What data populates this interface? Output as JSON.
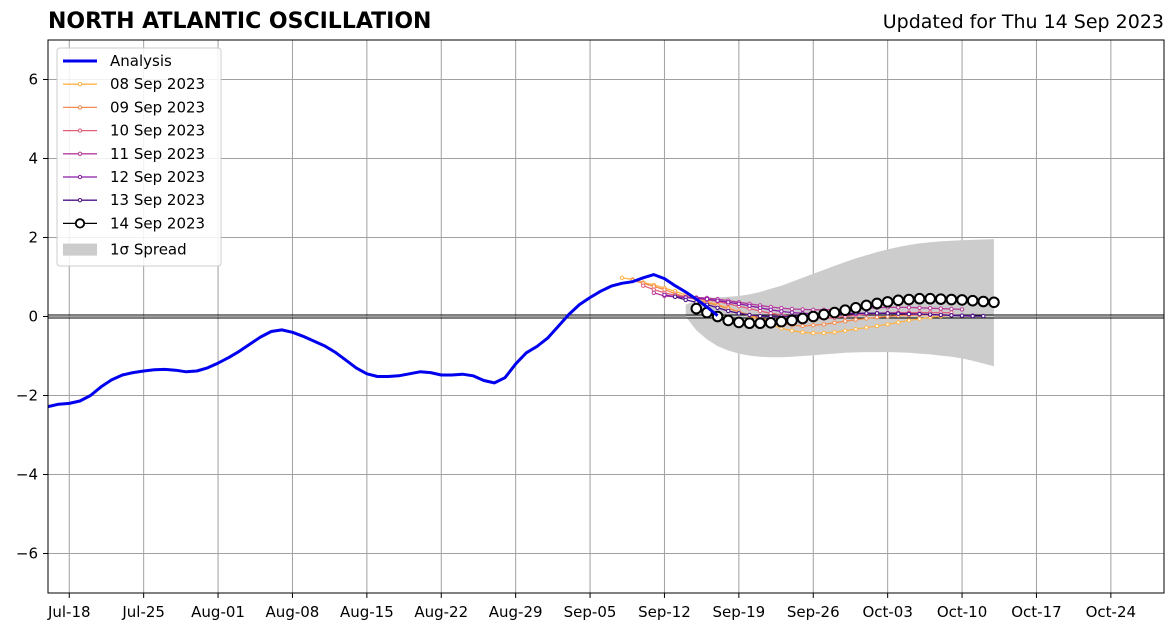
{
  "chart_data": {
    "type": "line",
    "title": "NORTH ATLANTIC OSCILLATION",
    "subtitle": "Updated for Thu 14 Sep 2023",
    "xlabel": "",
    "ylabel": "",
    "ylim": [
      -7,
      7
    ],
    "xlim": [
      "2023-07-16",
      "2023-10-29"
    ],
    "y_ticks": [
      -6,
      -4,
      -2,
      0,
      2,
      4,
      6
    ],
    "x_tick_dates": [
      "2023-07-18",
      "2023-07-25",
      "2023-08-01",
      "2023-08-08",
      "2023-08-15",
      "2023-08-22",
      "2023-08-29",
      "2023-09-05",
      "2023-09-12",
      "2023-09-19",
      "2023-09-26",
      "2023-10-03",
      "2023-10-10",
      "2023-10-17",
      "2023-10-24"
    ],
    "x_tick_labels": [
      "Jul-18",
      "Jul-25",
      "Aug-01",
      "Aug-08",
      "Aug-15",
      "Aug-22",
      "Aug-29",
      "Sep-05",
      "Sep-12",
      "Sep-19",
      "Sep-26",
      "Oct-03",
      "Oct-10",
      "Oct-17",
      "Oct-24"
    ],
    "grid": true,
    "legend_position": "top-left",
    "zero_line": 0,
    "analysis": {
      "name": "Analysis",
      "color": "#0000ee",
      "start_date": "2023-07-16",
      "values": [
        -2.28,
        -2.22,
        -2.2,
        -2.14,
        -2.0,
        -1.78,
        -1.6,
        -1.48,
        -1.42,
        -1.38,
        -1.35,
        -1.34,
        -1.36,
        -1.4,
        -1.38,
        -1.3,
        -1.18,
        -1.04,
        -0.88,
        -0.7,
        -0.52,
        -0.38,
        -0.34,
        -0.4,
        -0.5,
        -0.62,
        -0.74,
        -0.9,
        -1.1,
        -1.3,
        -1.45,
        -1.52,
        -1.52,
        -1.5,
        -1.45,
        -1.4,
        -1.42,
        -1.48,
        -1.48,
        -1.46,
        -1.5,
        -1.62,
        -1.68,
        -1.55,
        -1.2,
        -0.92,
        -0.76,
        -0.55,
        -0.25,
        0.05,
        0.3,
        0.48,
        0.64,
        0.77,
        0.84,
        0.88,
        0.98,
        1.06,
        0.96,
        0.78,
        0.62,
        0.44,
        0.24,
        0.02
      ]
    },
    "spread": {
      "name": "1σ Spread",
      "color": "#cccccc",
      "start_date": "2023-09-14",
      "upper": [
        0.3,
        0.4,
        0.46,
        0.48,
        0.5,
        0.52,
        0.56,
        0.62,
        0.7,
        0.78,
        0.88,
        0.98,
        1.08,
        1.18,
        1.28,
        1.38,
        1.47,
        1.55,
        1.63,
        1.7,
        1.76,
        1.81,
        1.85,
        1.88,
        1.9,
        1.92,
        1.93,
        1.94,
        1.95,
        1.96
      ],
      "lower": [
        0.0,
        -0.35,
        -0.58,
        -0.75,
        -0.86,
        -0.94,
        -0.99,
        -1.02,
        -1.03,
        -1.03,
        -1.02,
        -1.0,
        -0.98,
        -0.96,
        -0.94,
        -0.92,
        -0.91,
        -0.9,
        -0.9,
        -0.9,
        -0.91,
        -0.92,
        -0.94,
        -0.96,
        -0.99,
        -1.02,
        -1.06,
        -1.12,
        -1.19,
        -1.26
      ]
    },
    "series": [
      {
        "name": "08 Sep 2023",
        "color": "#ffb347",
        "start_date": "2023-09-08",
        "values": [
          0.98,
          0.94,
          0.86,
          0.8,
          0.72,
          0.64,
          0.55,
          0.47,
          0.38,
          0.3,
          0.22,
          0.12,
          0.02,
          -0.1,
          -0.2,
          -0.3,
          -0.36,
          -0.4,
          -0.42,
          -0.42,
          -0.4,
          -0.36,
          -0.32,
          -0.28,
          -0.24,
          -0.2,
          -0.15,
          -0.1,
          -0.06,
          -0.02,
          0.01,
          0.03
        ]
      },
      {
        "name": "09 Sep 2023",
        "color": "#f28c50",
        "start_date": "2023-09-09",
        "values": [
          0.92,
          0.84,
          0.76,
          0.68,
          0.58,
          0.5,
          0.42,
          0.35,
          0.28,
          0.2,
          0.12,
          0.04,
          -0.04,
          -0.12,
          -0.18,
          -0.22,
          -0.24,
          -0.22,
          -0.2,
          -0.16,
          -0.12,
          -0.08,
          -0.05,
          -0.02,
          0.0,
          0.02,
          0.03,
          0.04,
          0.04,
          0.04
        ]
      },
      {
        "name": "10 Sep 2023",
        "color": "#e0607a",
        "start_date": "2023-09-10",
        "values": [
          0.78,
          0.68,
          0.6,
          0.54,
          0.5,
          0.46,
          0.42,
          0.38,
          0.32,
          0.26,
          0.2,
          0.14,
          0.08,
          0.04,
          0.0,
          -0.03,
          -0.05,
          -0.05,
          -0.03,
          0.0,
          0.03,
          0.06,
          0.08,
          0.09,
          0.1,
          0.1,
          0.1,
          0.1,
          0.1,
          0.1
        ]
      },
      {
        "name": "11 Sep 2023",
        "color": "#b43c9a",
        "start_date": "2023-09-11",
        "values": [
          0.6,
          0.52,
          0.5,
          0.49,
          0.48,
          0.47,
          0.44,
          0.4,
          0.36,
          0.32,
          0.28,
          0.24,
          0.21,
          0.19,
          0.18,
          0.17,
          0.17,
          0.18,
          0.19,
          0.2,
          0.21,
          0.22,
          0.23,
          0.23,
          0.23,
          0.22,
          0.21,
          0.2,
          0.19,
          0.18
        ]
      },
      {
        "name": "12 Sep 2023",
        "color": "#8a1aa8",
        "start_date": "2023-09-12",
        "values": [
          0.55,
          0.5,
          0.48,
          0.46,
          0.44,
          0.4,
          0.36,
          0.32,
          0.27,
          0.22,
          0.17,
          0.13,
          0.1,
          0.08,
          0.07,
          0.06,
          0.06,
          0.06,
          0.07,
          0.08,
          0.08,
          0.08,
          0.08,
          0.07,
          0.06,
          0.05,
          0.04,
          0.03,
          0.02,
          0.02
        ]
      },
      {
        "name": "13 Sep 2023",
        "color": "#4b1088",
        "start_date": "2023-09-13",
        "values": [
          0.5,
          0.42,
          0.36,
          0.3,
          0.22,
          0.14,
          0.08,
          0.04,
          0.01,
          0.0,
          0.0,
          0.01,
          0.02,
          0.03,
          0.05,
          0.06,
          0.07,
          0.08,
          0.08,
          0.08,
          0.08,
          0.07,
          0.06,
          0.06,
          0.05,
          0.04,
          0.03,
          0.02,
          0.01,
          0.01
        ]
      },
      {
        "name": "14 Sep 2023",
        "color": "#000000",
        "start_date": "2023-09-15",
        "values": [
          0.2,
          0.1,
          0.0,
          -0.1,
          -0.15,
          -0.17,
          -0.17,
          -0.16,
          -0.13,
          -0.1,
          -0.05,
          0.0,
          0.05,
          0.1,
          0.16,
          0.22,
          0.28,
          0.33,
          0.37,
          0.41,
          0.43,
          0.45,
          0.45,
          0.44,
          0.43,
          0.42,
          0.4,
          0.38,
          0.36
        ]
      }
    ]
  }
}
